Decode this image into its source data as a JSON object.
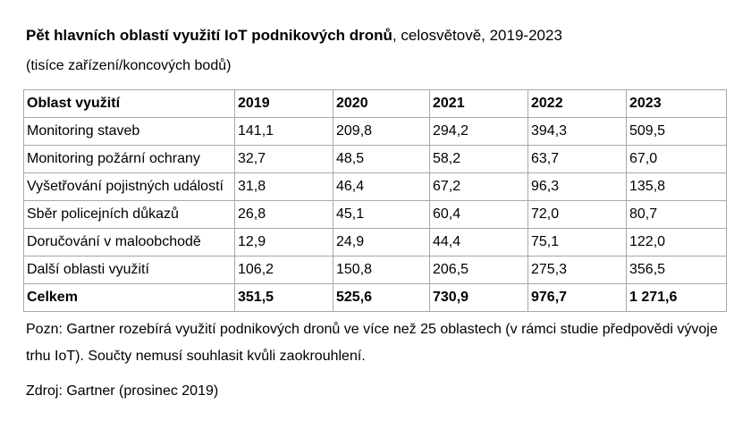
{
  "title": {
    "bold_part": "Pět hlavních oblastí využití IoT podnikových dronů",
    "regular_part": ", celosvětově, 2019-2023"
  },
  "subtitle": "(tisíce zařízení/koncových bodů)",
  "table": {
    "headers": [
      "Oblast využití",
      "2019",
      "2020",
      "2021",
      "2022",
      "2023"
    ],
    "rows": [
      [
        "Monitoring staveb",
        "141,1",
        "209,8",
        "294,2",
        "394,3",
        "509,5"
      ],
      [
        "Monitoring požární ochrany",
        "32,7",
        "48,5",
        "58,2",
        "63,7",
        "67,0"
      ],
      [
        "Vyšetřování pojistných událostí",
        "31,8",
        "46,4",
        "67,2",
        "96,3",
        "135,8"
      ],
      [
        "Sběr policejních důkazů",
        "26,8",
        "45,1",
        "60,4",
        "72,0",
        "80,7"
      ],
      [
        "Doručování v maloobchodě",
        "12,9",
        "24,9",
        "44,4",
        "75,1",
        "122,0"
      ],
      [
        "Další oblasti využití",
        "106,2",
        "150,8",
        "206,5",
        "275,3",
        "356,5"
      ]
    ],
    "total": [
      "Celkem",
      "351,5",
      "525,6",
      "730,9",
      "976,7",
      "1 271,6"
    ]
  },
  "note": "Pozn: Gartner rozebírá využití podnikových dronů ve více než 25 oblastech (v rámci studie předpovědi vývoje trhu IoT). Součty nemusí souhlasit kvůli zaokrouhlení.",
  "source": "Zdroj: Gartner (prosinec 2019)"
}
